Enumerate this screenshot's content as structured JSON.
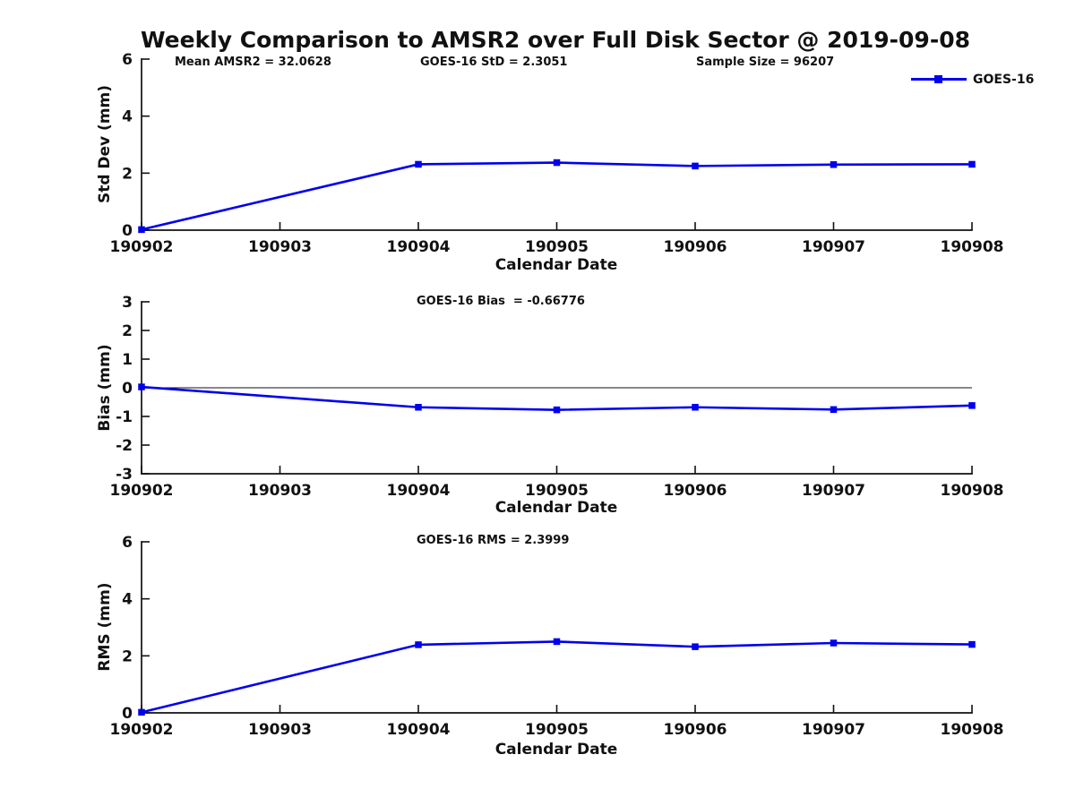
{
  "title": "Weekly Comparison to AMSR2 over Full Disk Sector @ 2019-09-08",
  "legend": {
    "label": "GOES-16",
    "color": "#0000EE",
    "marker": "filled-square"
  },
  "chart_data": [
    {
      "name": "std-dev",
      "type": "line",
      "ylabel": "Std Dev (mm)",
      "xlabel": "Calendar Date",
      "annotations": [
        "Mean AMSR2 = 32.0628",
        "GOES-16 StD = 2.3051",
        "Sample Size = 96207"
      ],
      "x_tick_labels": [
        "190902",
        "190903",
        "190904",
        "190905",
        "190906",
        "190907",
        "190908"
      ],
      "y_ticks": [
        0,
        2,
        4,
        6
      ],
      "y_tick_labels": [
        "0",
        "2",
        "4",
        "6"
      ],
      "xlim": [
        190902,
        190908
      ],
      "ylim": [
        0,
        6
      ],
      "zero_line": false,
      "x": [
        190902,
        190904,
        190905,
        190906,
        190907,
        190908
      ],
      "series": [
        {
          "name": "GOES-16",
          "color": "#0000EE",
          "values": [
            0.02,
            2.31,
            2.37,
            2.25,
            2.3,
            2.31
          ]
        }
      ]
    },
    {
      "name": "bias",
      "type": "line",
      "ylabel": "Bias (mm)",
      "xlabel": "Calendar Date",
      "annotations": [
        "GOES-16 Bias  = -0.66776"
      ],
      "x_tick_labels": [
        "190902",
        "190903",
        "190904",
        "190905",
        "190906",
        "190907",
        "190908"
      ],
      "y_ticks": [
        -3,
        -2,
        -1,
        0,
        1,
        2,
        3
      ],
      "y_tick_labels": [
        "-3",
        "-2",
        "-1",
        "0",
        "1",
        "2",
        "3"
      ],
      "xlim": [
        190902,
        190908
      ],
      "ylim": [
        -3,
        3
      ],
      "zero_line": true,
      "x": [
        190902,
        190904,
        190905,
        190906,
        190907,
        190908
      ],
      "series": [
        {
          "name": "GOES-16",
          "color": "#0000EE",
          "values": [
            0.03,
            -0.68,
            -0.77,
            -0.68,
            -0.76,
            -0.62
          ]
        }
      ]
    },
    {
      "name": "rms",
      "type": "line",
      "ylabel": "RMS (mm)",
      "xlabel": "Calendar Date",
      "annotations": [
        "GOES-16 RMS = 2.3999"
      ],
      "x_tick_labels": [
        "190902",
        "190903",
        "190904",
        "190905",
        "190906",
        "190907",
        "190908"
      ],
      "y_ticks": [
        0,
        2,
        4,
        6
      ],
      "y_tick_labels": [
        "0",
        "2",
        "4",
        "6"
      ],
      "xlim": [
        190902,
        190908
      ],
      "ylim": [
        0,
        6
      ],
      "zero_line": false,
      "x": [
        190902,
        190904,
        190905,
        190906,
        190907,
        190908
      ],
      "series": [
        {
          "name": "GOES-16",
          "color": "#0000EE",
          "values": [
            0.02,
            2.39,
            2.5,
            2.32,
            2.45,
            2.4
          ]
        }
      ]
    }
  ]
}
